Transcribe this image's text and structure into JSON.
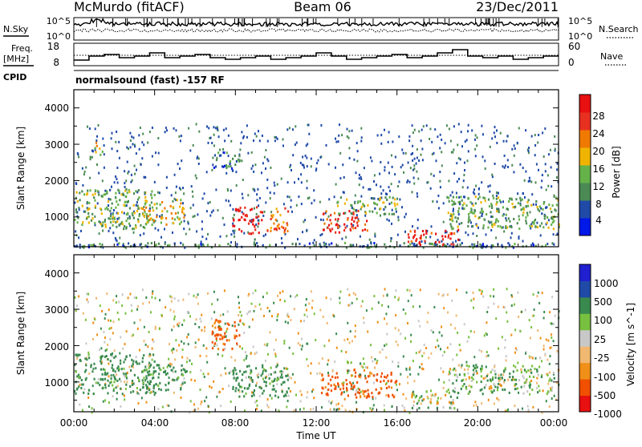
{
  "header": {
    "station": "McMurdo (fitACF)",
    "beam": "Beam 06",
    "date": "23/Dec/2011"
  },
  "noise_panel": {
    "left_label": "N.Sky",
    "right_label": "N.Search",
    "left_ticks": [
      "10^5",
      "10^0"
    ],
    "right_ticks": [
      "10^5",
      "10^0"
    ]
  },
  "freq_panel": {
    "left_label": "Freq.",
    "left_unit": "[MHz]",
    "left_ticks": [
      "18",
      "8"
    ],
    "right_label": "Nave",
    "right_ticks": [
      "60",
      "0"
    ]
  },
  "cpid": {
    "label": "CPID",
    "value": "normalsound (fast) -157 RF"
  },
  "x_axis": {
    "title": "Time UT",
    "ticks": [
      "00:00",
      "04:00",
      "08:00",
      "12:00",
      "16:00",
      "20:00",
      "00:00"
    ]
  },
  "colors": {
    "power": [
      "#0018e8",
      "#1f4aa8",
      "#4b8a54",
      "#66b24a",
      "#f0b400",
      "#f07a00",
      "#e83020",
      "#e81010"
    ],
    "velocity": [
      "#e81010",
      "#f05000",
      "#f09018",
      "#f0b870",
      "#c8c8c8",
      "#78c040",
      "#3a8a50",
      "#1f4aa8",
      "#2020d0"
    ]
  },
  "chart_data": [
    {
      "type": "heatmap",
      "title": "",
      "ylabel": "Slant Range [km]",
      "xlabel": "Time UT",
      "x_range": [
        "00:00",
        "24:00"
      ],
      "y_range": [
        180,
        4500
      ],
      "y_ticks": [
        "1000",
        "2000",
        "3000",
        "4000"
      ],
      "colorbar_label": "Power [dB]",
      "colorbar_ticks": [
        "4",
        "8",
        "12",
        "16",
        "20",
        "24",
        "28"
      ],
      "colorbar_range": [
        0,
        30
      ],
      "echo_regions": [
        {
          "t_start": 0.0,
          "t_end": 4.0,
          "r_min": 700,
          "r_max": 1800,
          "level": 12
        },
        {
          "t_start": 1.0,
          "t_end": 1.4,
          "r_min": 2650,
          "r_max": 3100,
          "level": 16
        },
        {
          "t_start": 3.3,
          "t_end": 5.5,
          "r_min": 800,
          "r_max": 1500,
          "level": 16
        },
        {
          "t_start": 6.8,
          "t_end": 8.2,
          "r_min": 2300,
          "r_max": 2800,
          "level": 8
        },
        {
          "t_start": 7.8,
          "t_end": 9.3,
          "r_min": 550,
          "r_max": 1300,
          "level": 28
        },
        {
          "t_start": 9.5,
          "t_end": 10.6,
          "r_min": 600,
          "r_max": 1300,
          "level": 20
        },
        {
          "t_start": 12.2,
          "t_end": 14.5,
          "r_min": 600,
          "r_max": 1200,
          "level": 26
        },
        {
          "t_start": 13.0,
          "t_end": 16.0,
          "r_min": 1100,
          "r_max": 1600,
          "level": 12
        },
        {
          "t_start": 16.5,
          "t_end": 19.0,
          "r_min": 250,
          "r_max": 700,
          "level": 26
        },
        {
          "t_start": 18.5,
          "t_end": 24.0,
          "r_min": 700,
          "r_max": 1600,
          "level": 12
        },
        {
          "t_start": 0.0,
          "t_end": 24.0,
          "r_min": 180,
          "r_max": 320,
          "level": 8
        }
      ]
    },
    {
      "type": "heatmap",
      "title": "",
      "ylabel": "Slant Range [km]",
      "xlabel": "Time UT",
      "x_range": [
        "00:00",
        "24:00"
      ],
      "y_range": [
        180,
        4500
      ],
      "y_ticks": [
        "1000",
        "2000",
        "3000",
        "4000"
      ],
      "colorbar_label": "Velocity [m s^-1]",
      "colorbar_ticks": [
        "1000",
        "500",
        "100",
        "25",
        "-25",
        "-100",
        "-500",
        "-1000"
      ],
      "colorbar_range": [
        -1000,
        1000
      ],
      "echo_regions": [
        {
          "t_start": 0.0,
          "t_end": 4.0,
          "r_min": 700,
          "r_max": 1800,
          "level": 200
        },
        {
          "t_start": 3.3,
          "t_end": 5.5,
          "r_min": 800,
          "r_max": 1500,
          "level": 200
        },
        {
          "t_start": 6.8,
          "t_end": 8.2,
          "r_min": 1900,
          "r_max": 2800,
          "level": -200
        },
        {
          "t_start": 7.8,
          "t_end": 10.6,
          "r_min": 600,
          "r_max": 1500,
          "level": 200
        },
        {
          "t_start": 12.2,
          "t_end": 16.0,
          "r_min": 600,
          "r_max": 1300,
          "level": -200
        },
        {
          "t_start": 13.5,
          "t_end": 15.0,
          "r_min": 1200,
          "r_max": 1600,
          "level": 0
        },
        {
          "t_start": 16.5,
          "t_end": 19.0,
          "r_min": 300,
          "r_max": 800,
          "level": 50
        },
        {
          "t_start": 18.5,
          "t_end": 24.0,
          "r_min": 700,
          "r_max": 1500,
          "level": 80
        }
      ]
    }
  ]
}
